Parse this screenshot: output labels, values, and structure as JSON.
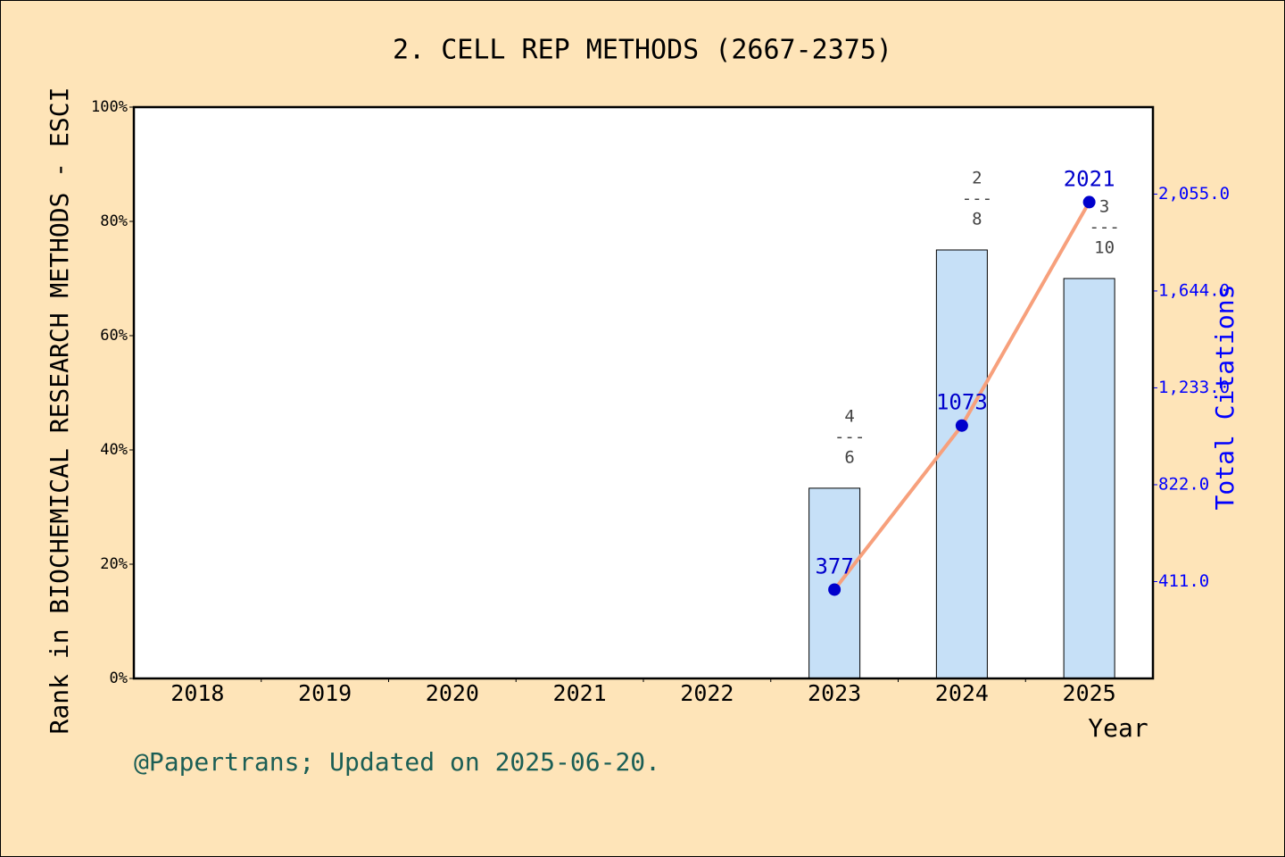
{
  "chart_data": {
    "type": "bar",
    "title": "2. CELL REP METHODS (2667-2375)",
    "x_label": "Year",
    "y_label": "Rank in BIOCHEMICAL RESEARCH METHODS - ESCI",
    "y2_label": "Total Citations",
    "footer": "@Papertrans; Updated on 2025-06-20.",
    "categories": [
      "2018",
      "2019",
      "2020",
      "2021",
      "2022",
      "2023",
      "2024",
      "2025"
    ],
    "series": [
      {
        "type": "bar",
        "color": "#c6e0f7",
        "values": [
          null,
          null,
          null,
          null,
          null,
          33.3,
          75,
          70
        ],
        "annotations": [
          null,
          null,
          null,
          null,
          null,
          [
            "4",
            "---",
            "6"
          ],
          [
            "2",
            "---",
            "8"
          ],
          [
            "3",
            "---",
            "10"
          ]
        ]
      },
      {
        "type": "line",
        "axis": "y2",
        "color": "#f7a07c",
        "marker_color": "#0000cc",
        "values": [
          null,
          null,
          null,
          null,
          null,
          377,
          1073,
          2021
        ]
      }
    ],
    "ylim": [
      0,
      100
    ],
    "yticks": [
      {
        "value": 0,
        "label": "0%"
      },
      {
        "value": 20,
        "label": "20%"
      },
      {
        "value": 40,
        "label": "40%"
      },
      {
        "value": 60,
        "label": "60%"
      },
      {
        "value": 80,
        "label": "80%"
      },
      {
        "value": 100,
        "label": "100%"
      }
    ],
    "y2lim": [
      0,
      2424
    ],
    "y2ticks": [
      {
        "value": 411,
        "label": "411.0"
      },
      {
        "value": 822,
        "label": "822.0"
      },
      {
        "value": 1233,
        "label": "1,233.0"
      },
      {
        "value": 1644,
        "label": "1,644.0"
      },
      {
        "value": 2055,
        "label": "2,055.0"
      }
    ]
  }
}
